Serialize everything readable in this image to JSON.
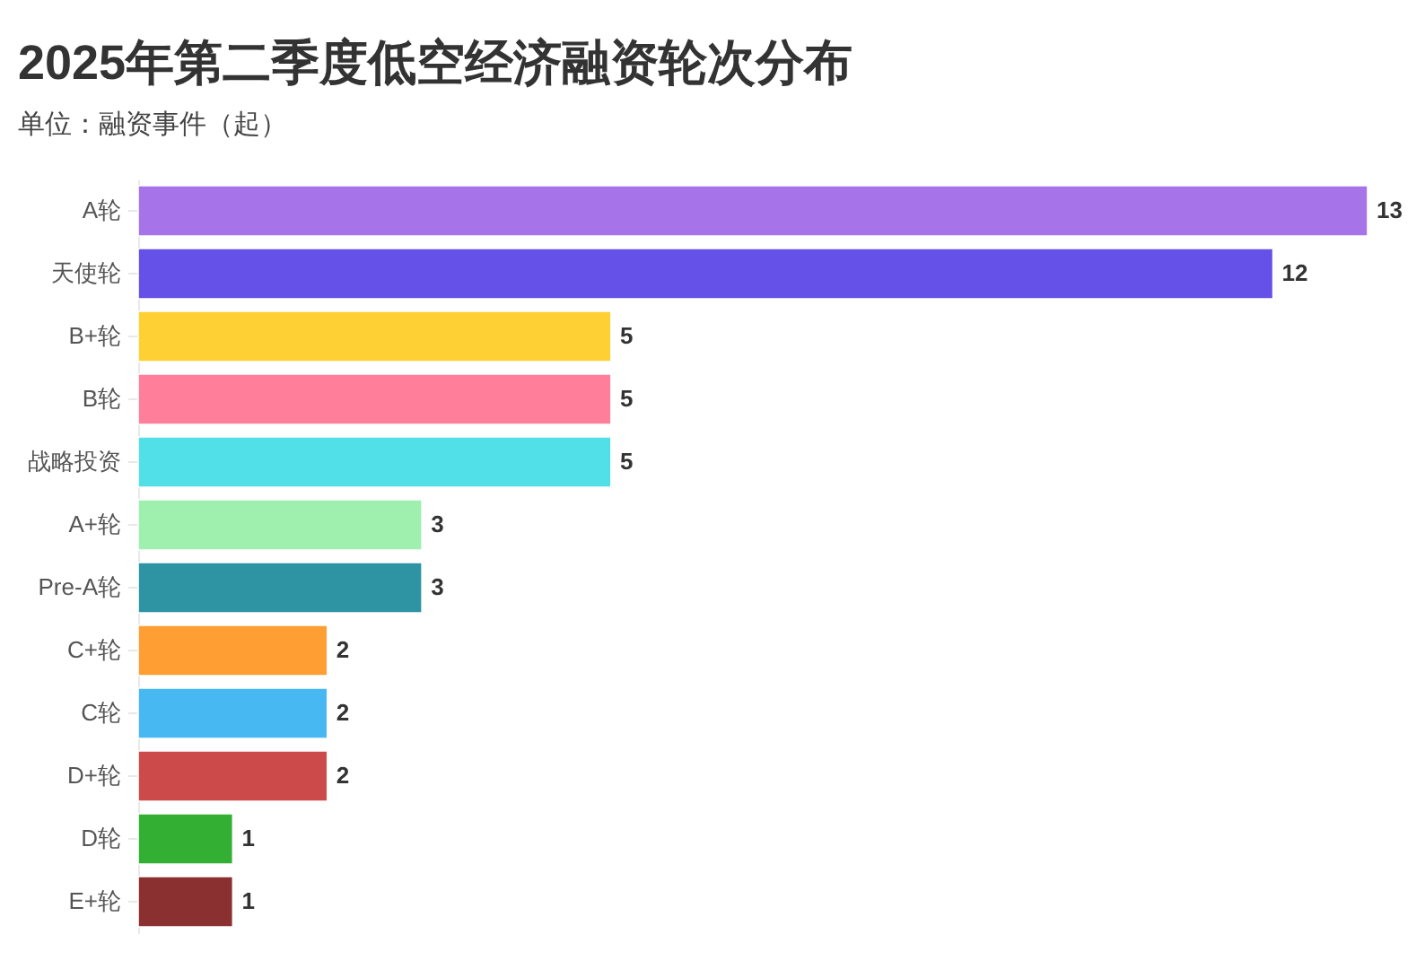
{
  "chart_data": {
    "type": "bar",
    "orientation": "horizontal",
    "title": "2025年第二季度低空经济融资轮次分布",
    "subtitle": "单位：融资事件（起）",
    "categories": [
      "A轮",
      "天使轮",
      "B+轮",
      "B轮",
      "战略投资",
      "A+轮",
      "Pre-A轮",
      "C+轮",
      "C轮",
      "D+轮",
      "D轮",
      "E+轮"
    ],
    "values": [
      13,
      12,
      5,
      5,
      5,
      3,
      3,
      2,
      2,
      2,
      1,
      1
    ],
    "colors": [
      "#a673e9",
      "#6550e8",
      "#ffd033",
      "#ff7f9b",
      "#51e0e8",
      "#9ff0ae",
      "#2e94a3",
      "#ff9f33",
      "#47b8f2",
      "#cc4a4a",
      "#33b033",
      "#8b3030"
    ],
    "data_labels": true,
    "tick_labels": "y"
  }
}
